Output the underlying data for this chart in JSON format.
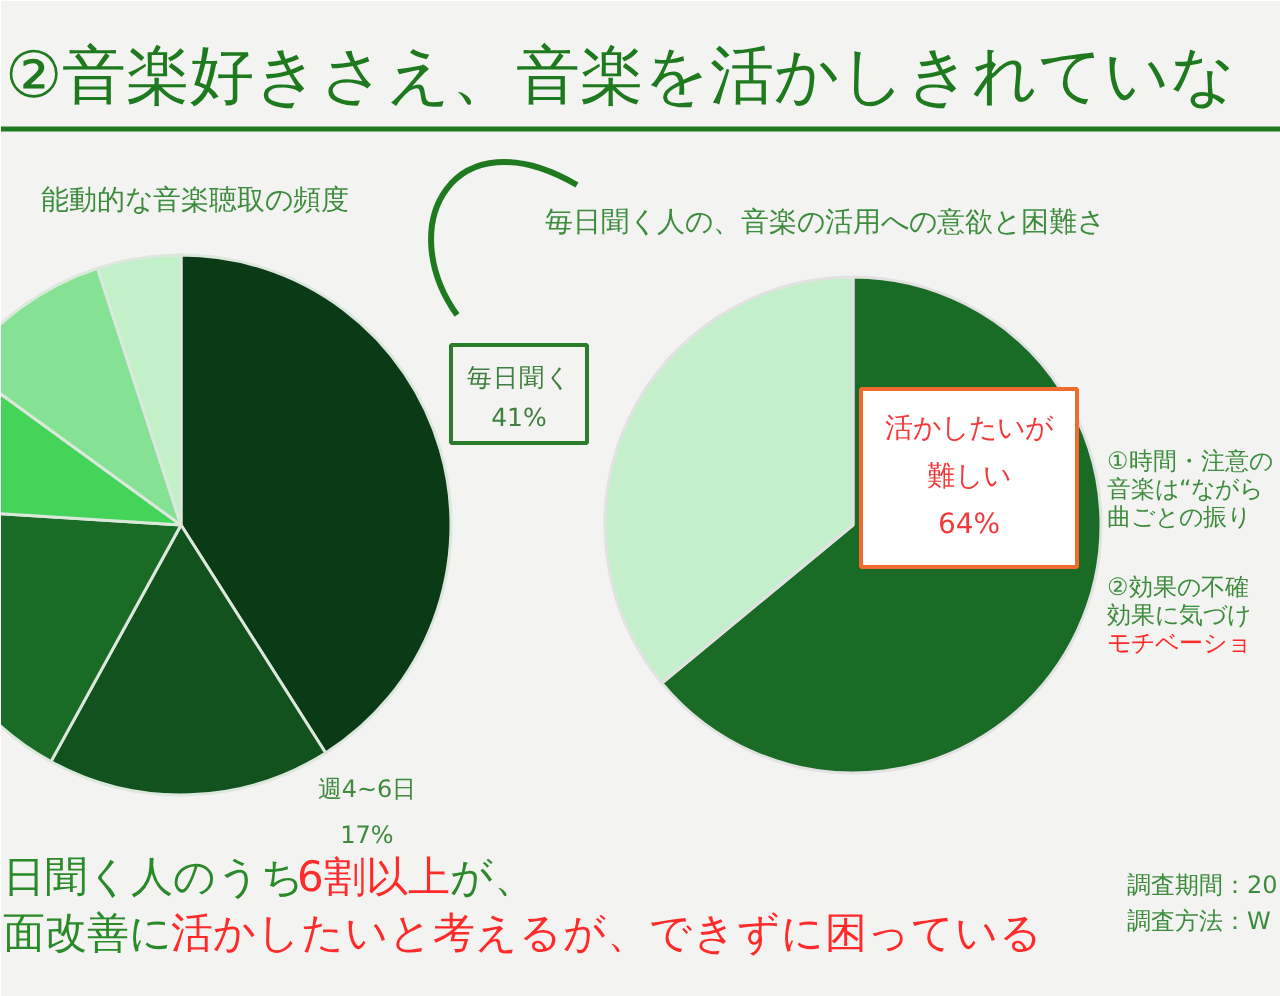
{
  "chart_data": [
    {
      "type": "pie",
      "title": "②音楽好きさえ、音楽を活かしきれていな",
      "subtitle": "能動的な音楽聴取の頻度",
      "categories": [
        "毎日聞く",
        "週4~6日",
        null,
        null,
        null,
        null
      ],
      "values": [
        41,
        17,
        18,
        9,
        10,
        5
      ],
      "colors": [
        "#0b3a16",
        "#12521f",
        "#196b26",
        "#44d45a",
        "#85e294",
        "#c2f0c9"
      ],
      "value_labels": [
        "41%",
        "17%",
        null,
        null,
        null,
        null
      ],
      "annotations": [
        "日聞く人のうち",
        "6割以上",
        "が、",
        "面改善に",
        "活かしたいと考えるが、できずに困っている"
      ]
    },
    {
      "type": "pie",
      "title": "毎日聞く人の、音楽の活用への意欲と困難さ",
      "categories": [
        "活かしたいが難しい",
        null
      ],
      "values": [
        64,
        36
      ],
      "colors": [
        "#196b26",
        "#c3efca"
      ],
      "value_labels": [
        "64%",
        null
      ],
      "annotations": [
        "①時間・注意の",
        "音楽は“ながら",
        "曲ごとの振り",
        "②効果の不確",
        "効果に気づけ",
        "モチベーショ",
        "調査期間：20",
        "調査方法：W"
      ]
    }
  ]
}
